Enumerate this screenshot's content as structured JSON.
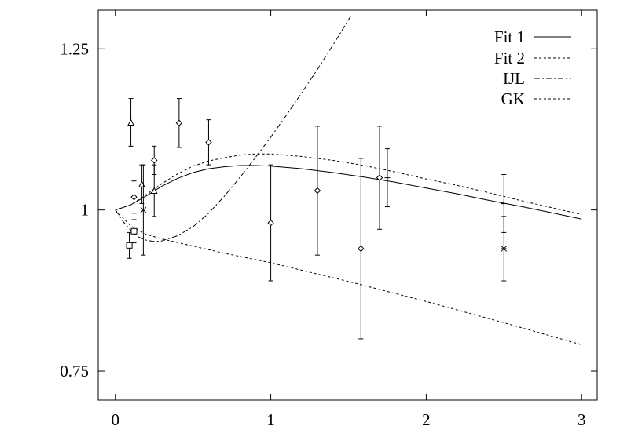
{
  "chart_data": {
    "type": "line",
    "title": "",
    "xlabel": "",
    "ylabel": "",
    "xlim": [
      -0.11,
      3.1
    ],
    "ylim": [
      0.705,
      1.31
    ],
    "grid": false,
    "legend_position": "top-right",
    "x_ticks": [
      0,
      1,
      2,
      3
    ],
    "x_tick_labels": [
      "0",
      "1",
      "2",
      "3"
    ],
    "y_ticks": [
      0.75,
      1,
      1.25
    ],
    "y_tick_labels": [
      "0.75",
      "1",
      "1.25"
    ],
    "series": [
      {
        "name": "Fit 1",
        "style": "solid",
        "points": [
          [
            0,
            1.0
          ],
          [
            0.1,
            1.008
          ],
          [
            0.2,
            1.022
          ],
          [
            0.3,
            1.037
          ],
          [
            0.4,
            1.049
          ],
          [
            0.5,
            1.058
          ],
          [
            0.6,
            1.064
          ],
          [
            0.7,
            1.067
          ],
          [
            0.8,
            1.069
          ],
          [
            0.9,
            1.069
          ],
          [
            1.0,
            1.068
          ],
          [
            1.2,
            1.064
          ],
          [
            1.4,
            1.058
          ],
          [
            1.6,
            1.051
          ],
          [
            1.8,
            1.043
          ],
          [
            2.0,
            1.034
          ],
          [
            2.2,
            1.025
          ],
          [
            2.4,
            1.015
          ],
          [
            2.6,
            1.006
          ],
          [
            2.8,
            0.996
          ],
          [
            3.0,
            0.986
          ]
        ]
      },
      {
        "name": "Fit 2",
        "style": "dotted",
        "points": [
          [
            0,
            1.0
          ],
          [
            0.1,
            1.008
          ],
          [
            0.2,
            1.024
          ],
          [
            0.3,
            1.041
          ],
          [
            0.4,
            1.056
          ],
          [
            0.5,
            1.068
          ],
          [
            0.6,
            1.076
          ],
          [
            0.7,
            1.081
          ],
          [
            0.8,
            1.085
          ],
          [
            0.9,
            1.087
          ],
          [
            1.0,
            1.087
          ],
          [
            1.2,
            1.083
          ],
          [
            1.4,
            1.077
          ],
          [
            1.6,
            1.069
          ],
          [
            1.8,
            1.059
          ],
          [
            2.0,
            1.048
          ],
          [
            2.2,
            1.038
          ],
          [
            2.4,
            1.027
          ],
          [
            2.6,
            1.015
          ],
          [
            2.8,
            1.004
          ],
          [
            3.0,
            0.993
          ]
        ]
      },
      {
        "name": "IJL",
        "style": "dashdot",
        "points": [
          [
            0,
            1.0
          ],
          [
            0.05,
            0.982
          ],
          [
            0.1,
            0.968
          ],
          [
            0.15,
            0.958
          ],
          [
            0.2,
            0.953
          ],
          [
            0.25,
            0.951
          ],
          [
            0.3,
            0.952
          ],
          [
            0.4,
            0.96
          ],
          [
            0.5,
            0.974
          ],
          [
            0.6,
            0.995
          ],
          [
            0.7,
            1.021
          ],
          [
            0.8,
            1.05
          ],
          [
            0.9,
            1.081
          ],
          [
            1.0,
            1.113
          ],
          [
            1.1,
            1.147
          ],
          [
            1.2,
            1.182
          ],
          [
            1.3,
            1.218
          ],
          [
            1.4,
            1.256
          ],
          [
            1.5,
            1.295
          ],
          [
            1.52,
            1.303
          ]
        ]
      },
      {
        "name": "GK",
        "style": "dotted",
        "points": [
          [
            0,
            1.0
          ],
          [
            0.1,
            0.975
          ],
          [
            0.2,
            0.962
          ],
          [
            0.3,
            0.955
          ],
          [
            0.5,
            0.944
          ],
          [
            0.7,
            0.933
          ],
          [
            1.0,
            0.918
          ],
          [
            1.5,
            0.889
          ],
          [
            2.0,
            0.858
          ],
          [
            2.5,
            0.825
          ],
          [
            3.0,
            0.791
          ]
        ]
      }
    ],
    "data_points": [
      {
        "marker": "triangle",
        "x": 0.1,
        "y": 1.136,
        "err": 0.037
      },
      {
        "marker": "triangle",
        "x": 0.17,
        "y": 1.04,
        "err": 0.03
      },
      {
        "marker": "triangle",
        "x": 0.25,
        "y": 1.03,
        "err": 0.04
      },
      {
        "marker": "diamond",
        "x": 0.12,
        "y": 1.02,
        "err": 0.025
      },
      {
        "marker": "diamond",
        "x": 0.25,
        "y": 1.077,
        "err": 0.022
      },
      {
        "marker": "diamond",
        "x": 0.41,
        "y": 1.135,
        "err": 0.038
      },
      {
        "marker": "diamond",
        "x": 0.6,
        "y": 1.105,
        "err": 0.035
      },
      {
        "marker": "diamond",
        "x": 1.0,
        "y": 0.98,
        "err": 0.09
      },
      {
        "marker": "diamond",
        "x": 1.3,
        "y": 1.03,
        "err": 0.1
      },
      {
        "marker": "diamond",
        "x": 1.58,
        "y": 0.94,
        "err": 0.14
      },
      {
        "marker": "diamond",
        "x": 1.7,
        "y": 1.05,
        "err": 0.08
      },
      {
        "marker": "square",
        "x": 0.09,
        "y": 0.945,
        "err": 0.02
      },
      {
        "marker": "square",
        "x": 0.12,
        "y": 0.967,
        "err": 0.018
      },
      {
        "marker": "cross",
        "x": 0.18,
        "y": 1.0,
        "err": 0.07
      },
      {
        "marker": "plus",
        "x": 1.75,
        "y": 1.05,
        "err": 0.045
      },
      {
        "marker": "plus",
        "x": 2.5,
        "y": 1.01,
        "err": 0.045
      },
      {
        "marker": "asterisk",
        "x": 2.5,
        "y": 0.94,
        "err": 0.05
      }
    ]
  }
}
